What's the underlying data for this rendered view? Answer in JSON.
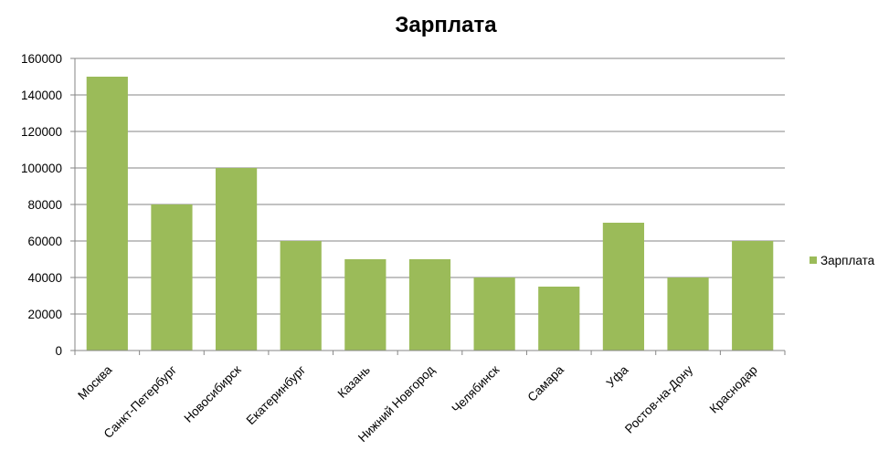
{
  "chart_data": {
    "type": "bar",
    "title": "Зарплата",
    "categories": [
      "Москва",
      "Санкт-Петербург",
      "Новосибирск",
      "Екатеринбург",
      "Казань",
      "Нижний Новгород",
      "Челябинск",
      "Самара",
      "Уфа",
      "Ростов-на-Дону",
      "Краснодар"
    ],
    "series": [
      {
        "name": "Зарплата",
        "values": [
          150000,
          80000,
          100000,
          60000,
          50000,
          50000,
          40000,
          35000,
          70000,
          40000,
          60000
        ],
        "color": "#9bbb59"
      }
    ],
    "ylim": [
      0,
      160000
    ],
    "yticks": [
      "0",
      "20000",
      "40000",
      "60000",
      "80000",
      "100000",
      "120000",
      "140000",
      "160000"
    ],
    "grid": true,
    "legend_position": "right"
  }
}
